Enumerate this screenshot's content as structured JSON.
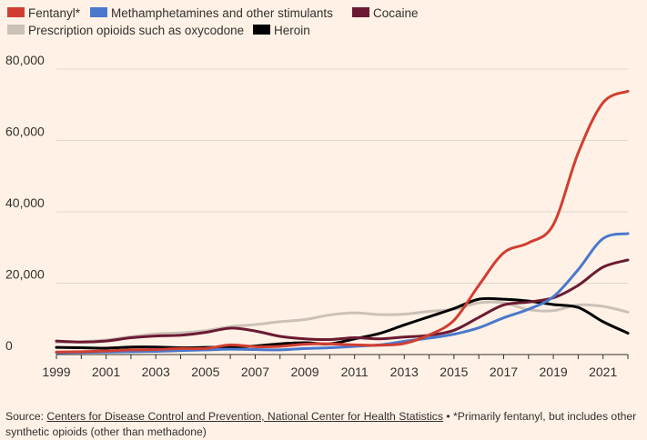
{
  "chart_data": {
    "type": "line",
    "x": [
      1999,
      2000,
      2001,
      2002,
      2003,
      2004,
      2005,
      2006,
      2007,
      2008,
      2009,
      2010,
      2011,
      2012,
      2013,
      2014,
      2015,
      2016,
      2017,
      2018,
      2019,
      2020,
      2021,
      2022
    ],
    "xticks": [
      "1999",
      "2001",
      "2003",
      "2005",
      "2007",
      "2009",
      "2011",
      "2013",
      "2015",
      "2017",
      "2019",
      "2021"
    ],
    "xtick_values": [
      1999,
      2001,
      2003,
      2005,
      2007,
      2009,
      2011,
      2013,
      2015,
      2017,
      2019,
      2021
    ],
    "yticks": [
      "0",
      "20,000",
      "40,000",
      "60,000",
      "80,000"
    ],
    "ytick_values": [
      0,
      20000,
      40000,
      60000,
      80000
    ],
    "ylim": [
      0,
      80000
    ],
    "xlim": [
      1999,
      2022
    ],
    "grid": true,
    "legend_position": "top-left",
    "series": [
      {
        "name": "Prescription opioids such as oxycodone",
        "color": "#ccc1b7",
        "values": [
          3400,
          3600,
          4100,
          5000,
          5800,
          6100,
          6700,
          7800,
          8400,
          9200,
          9800,
          11100,
          11700,
          11200,
          11300,
          12100,
          12700,
          14500,
          14500,
          12600,
          12300,
          13900,
          13500,
          11900
        ]
      },
      {
        "name": "Heroin",
        "color": "#000000",
        "values": [
          2000,
          1900,
          1800,
          2100,
          2100,
          1900,
          2000,
          2100,
          2400,
          3000,
          3300,
          3000,
          4400,
          5900,
          8300,
          10600,
          12900,
          15500,
          15500,
          15000,
          14000,
          13200,
          9200,
          6000
        ]
      },
      {
        "name": "Cocaine",
        "color": "#6b1a32",
        "values": [
          3800,
          3500,
          3800,
          4700,
          5200,
          5400,
          6200,
          7400,
          6600,
          5100,
          4400,
          4200,
          4700,
          4400,
          4900,
          5400,
          6800,
          10400,
          13900,
          14700,
          15900,
          19400,
          24500,
          26500
        ]
      },
      {
        "name": "Methamphetamines and other stimulants",
        "color": "#4a78cc",
        "values": [
          500,
          600,
          700,
          800,
          900,
          1100,
          1300,
          1500,
          1400,
          1300,
          1700,
          1900,
          2300,
          2700,
          3700,
          4600,
          5700,
          7500,
          10300,
          12700,
          16200,
          23800,
          32500,
          33900
        ]
      },
      {
        "name": "Fentanyl*",
        "color": "#d13e31",
        "values": [
          700,
          800,
          1000,
          1300,
          1400,
          1700,
          1700,
          2700,
          2200,
          2300,
          2900,
          3000,
          2700,
          2600,
          3100,
          5500,
          9600,
          19400,
          28500,
          31300,
          36400,
          56500,
          70600,
          73800
        ]
      }
    ],
    "legend": [
      {
        "label": "Fentanyl*",
        "color": "#d13e31"
      },
      {
        "label": "Methamphetamines and other stimulants",
        "color": "#4a78cc"
      },
      {
        "label": "Cocaine",
        "color": "#6b1a32"
      },
      {
        "label": "Prescription opioids such as oxycodone",
        "color": "#ccc1b7"
      },
      {
        "label": "Heroin",
        "color": "#000000"
      }
    ]
  },
  "colors": {
    "background": "#fff1e5",
    "grid": "#e1d6cc",
    "axis": "#33302e",
    "text": "#33302e"
  },
  "source": {
    "prefix": "Source: ",
    "link_text": "Centers for Disease Control and Prevention, National Center for Health Statistics",
    "suffix": " • *Primarily fentanyl, but includes other synthetic opioids (other than methadone)"
  }
}
